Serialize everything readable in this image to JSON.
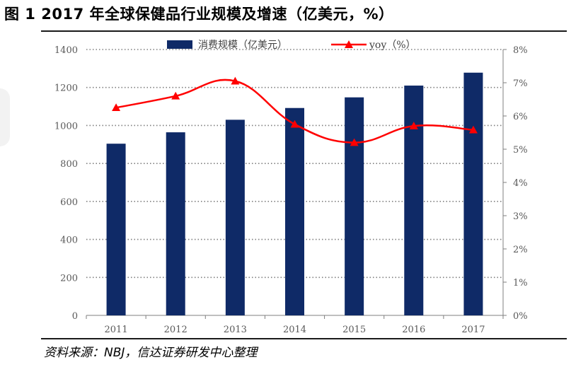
{
  "title": "图 1 2017 年全球保健品行业规模及增速（亿美元，%）",
  "source": "资料来源：NBJ，信达证券研发中心整理",
  "colors": {
    "bar": "#0f2a67",
    "line": "#ff0000",
    "grid": "#7f7f7f",
    "text": "#595959"
  },
  "chart_data": {
    "type": "bar",
    "categories": [
      "2011",
      "2012",
      "2013",
      "2014",
      "2015",
      "2016",
      "2017"
    ],
    "series": [
      {
        "name": "消费规模（亿美元）",
        "type": "bar",
        "axis": "left",
        "values": [
          904,
          964,
          1030,
          1092,
          1148,
          1210,
          1278
        ]
      },
      {
        "name": "yoy（%）",
        "type": "line",
        "axis": "right",
        "marker": "triangle",
        "values": [
          6.25,
          6.6,
          7.05,
          5.75,
          5.2,
          5.7,
          5.58
        ]
      }
    ],
    "y_left": {
      "ylim": [
        0,
        1400
      ],
      "ticks": [
        "0",
        "200",
        "400",
        "600",
        "800",
        "1000",
        "1200",
        "1400"
      ]
    },
    "y_right": {
      "ylim": [
        0,
        8
      ],
      "ticks": [
        "0%",
        "1%",
        "2%",
        "3%",
        "4%",
        "5%",
        "6%",
        "7%",
        "8%"
      ]
    },
    "grid": true,
    "legend": "top"
  }
}
